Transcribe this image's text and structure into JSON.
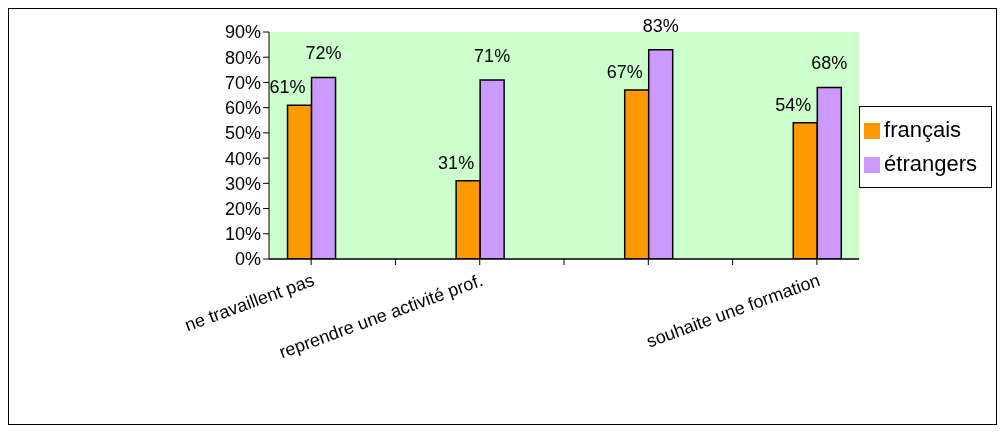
{
  "chart_data": {
    "type": "bar",
    "categories": [
      "ne travaillent pas",
      null,
      "reprendre une activité prof.",
      null,
      null,
      null,
      "souhaite une formation"
    ],
    "series": [
      {
        "name": "français",
        "color": "#ff9900",
        "values": [
          61,
          null,
          31,
          null,
          67,
          null,
          54
        ],
        "value_labels": [
          "61%",
          null,
          "31%",
          null,
          "67%",
          null,
          "54%"
        ]
      },
      {
        "name": "étrangers",
        "color": "#cc99ff",
        "values": [
          72,
          null,
          71,
          null,
          83,
          null,
          68
        ],
        "value_labels": [
          "72%",
          null,
          "71%",
          null,
          "83%",
          null,
          "68%"
        ]
      }
    ],
    "ylim": [
      0,
      90
    ],
    "yticks": [
      {
        "value": 0,
        "label": "0%"
      },
      {
        "value": 10,
        "label": "10%"
      },
      {
        "value": 20,
        "label": "20%"
      },
      {
        "value": 30,
        "label": "30%"
      },
      {
        "value": 40,
        "label": "40%"
      },
      {
        "value": 50,
        "label": "50%"
      },
      {
        "value": 60,
        "label": "60%"
      },
      {
        "value": 70,
        "label": "70%"
      },
      {
        "value": 80,
        "label": "80%"
      },
      {
        "value": 90,
        "label": "90%"
      }
    ],
    "grid": false,
    "legend": "right"
  }
}
